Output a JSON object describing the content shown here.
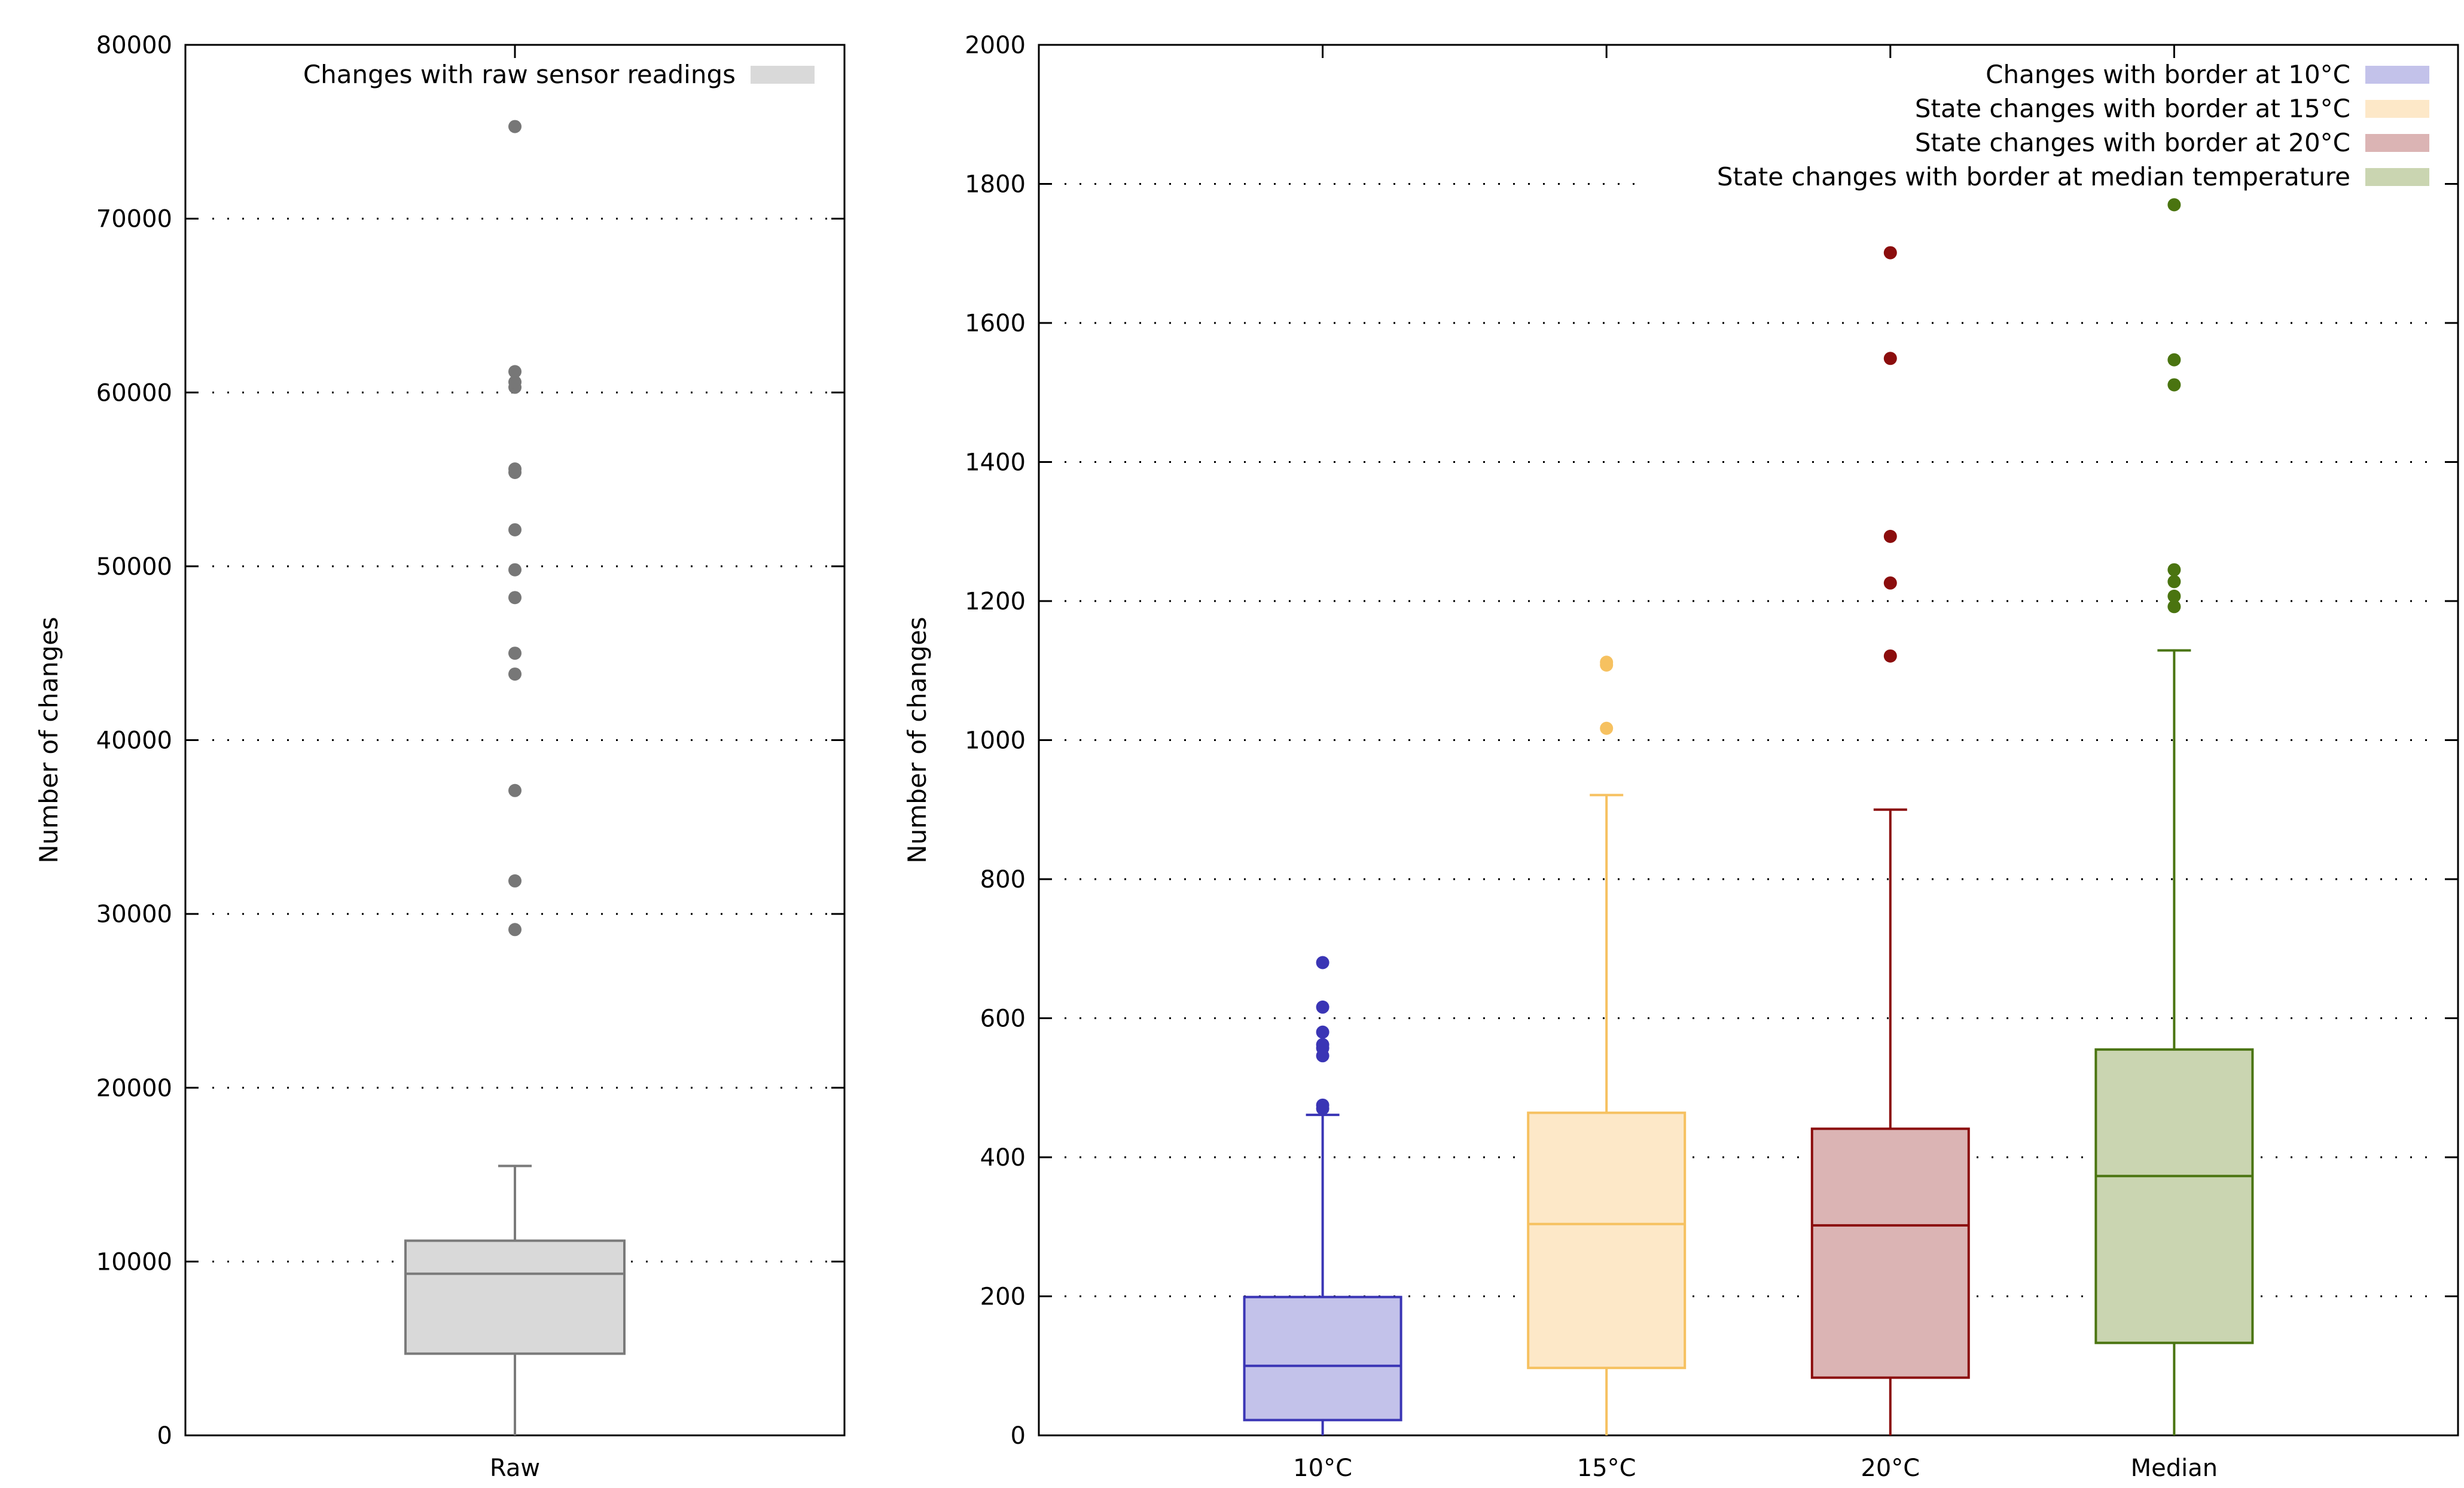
{
  "chart_data": [
    {
      "type": "boxplot",
      "title": "",
      "xlabel": "",
      "ylabel": "Number of changes",
      "ylim": [
        0,
        80000
      ],
      "yticks": [
        0,
        10000,
        20000,
        30000,
        40000,
        50000,
        60000,
        70000,
        80000
      ],
      "grid": true,
      "legend_position": "top-right",
      "categories": [
        "Raw"
      ],
      "series": [
        {
          "name": "Changes with raw sensor readings",
          "category": "Raw",
          "fill": "#d9d9d9",
          "stroke": "#7a7a7a",
          "outlier_color": "#777777",
          "min": 0,
          "q1": 4700,
          "median": 9300,
          "q3": 11200,
          "max": 15500,
          "outliers": [
            29100,
            31900,
            37100,
            43800,
            45000,
            48200,
            49800,
            52100,
            55400,
            55600,
            60300,
            60600,
            61200,
            75300
          ]
        }
      ]
    },
    {
      "type": "boxplot",
      "title": "",
      "xlabel": "",
      "ylabel": "Number of changes",
      "ylim": [
        0,
        2000
      ],
      "yticks": [
        0,
        200,
        400,
        600,
        800,
        1000,
        1200,
        1400,
        1600,
        1800,
        2000
      ],
      "grid": true,
      "legend_position": "top-right",
      "categories": [
        "10°C",
        "15°C",
        "20°C",
        "Median"
      ],
      "series": [
        {
          "name": "Changes with border at 10°C",
          "category": "10°C",
          "fill": "#c3c2ea",
          "stroke": "#3a35b5",
          "outlier_color": "#3a35b5",
          "min": 0,
          "q1": 22,
          "median": 100,
          "q3": 199,
          "max": 461,
          "outliers": [
            470,
            475,
            546,
            557,
            562,
            580,
            616,
            680
          ]
        },
        {
          "name": "State changes with border at 15°C",
          "category": "15°C",
          "fill": "#fde8c8",
          "stroke": "#f6c160",
          "outlier_color": "#f6c160",
          "min": 0,
          "q1": 97,
          "median": 304,
          "q3": 464,
          "max": 921,
          "outliers": [
            1017,
            1108,
            1112
          ]
        },
        {
          "name": "State changes with border at 20°C",
          "category": "20°C",
          "fill": "#dbb4b4",
          "stroke": "#8b0d0d",
          "outlier_color": "#8b0d0d",
          "min": 0,
          "q1": 83,
          "median": 302,
          "q3": 441,
          "max": 900,
          "outliers": [
            1121,
            1226,
            1293,
            1549,
            1701
          ]
        },
        {
          "name": "State changes with border at median temperature",
          "category": "Median",
          "fill": "#cad5b1",
          "stroke": "#4a7410",
          "outlier_color": "#4a7410",
          "min": 0,
          "q1": 133,
          "median": 373,
          "q3": 555,
          "max": 1129,
          "outliers": [
            1192,
            1207,
            1228,
            1245,
            1511,
            1547,
            1770
          ]
        }
      ]
    }
  ]
}
